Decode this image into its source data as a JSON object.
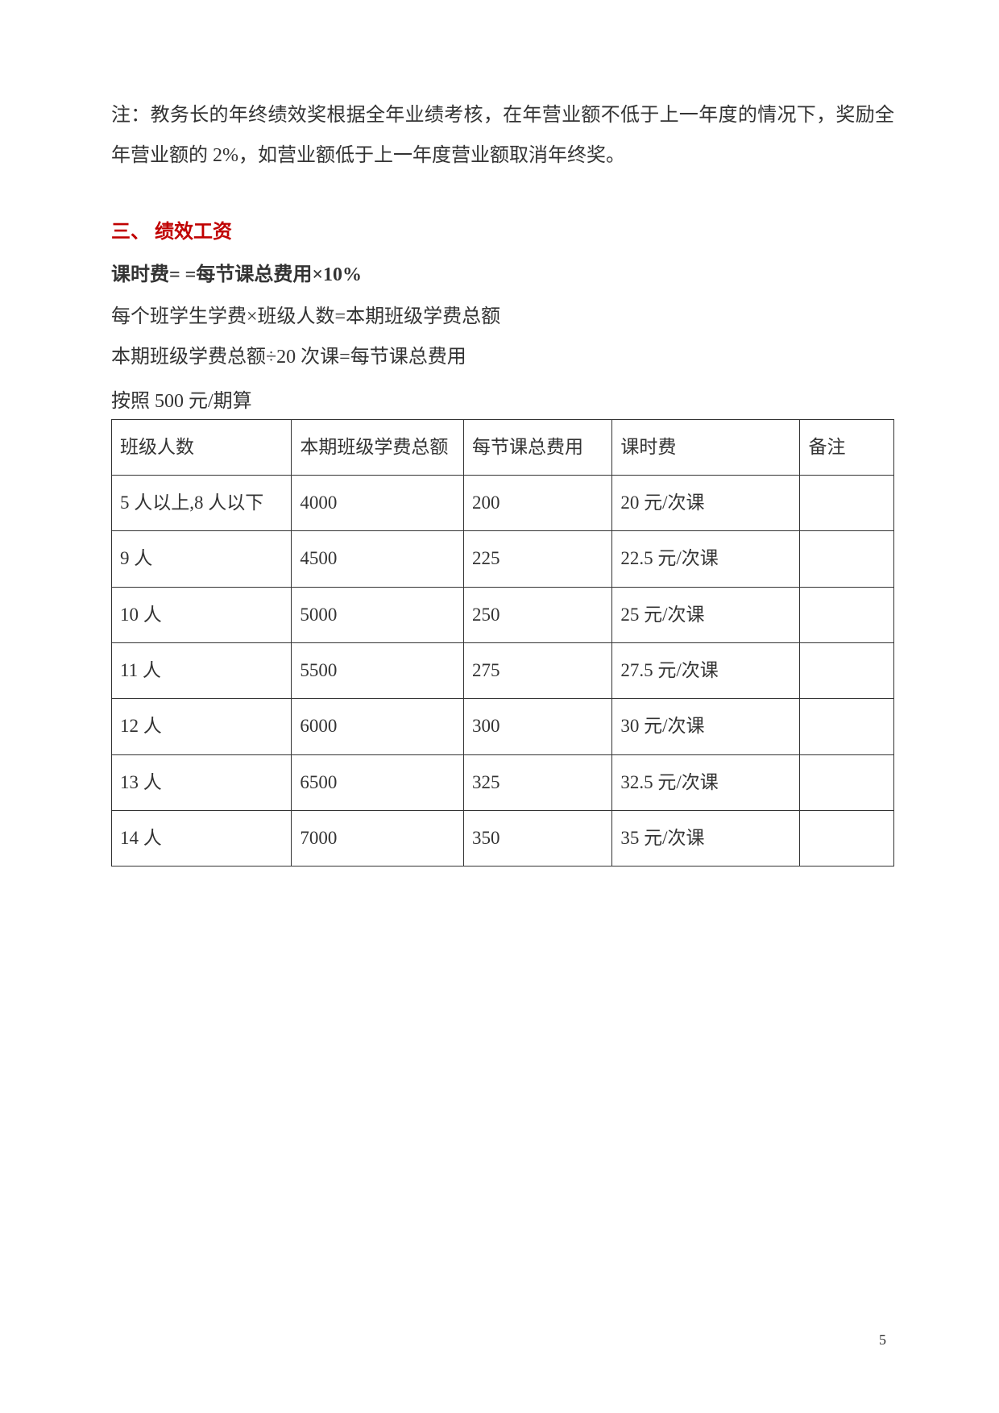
{
  "note": {
    "text": "注：教务长的年终绩效奖根据全年业绩考核，在年营业额不低于上一年度的情况下，奖励全年营业额的 2%，如营业额低于上一年度营业额取消年终奖。"
  },
  "section": {
    "heading": "三、 绩效工资",
    "formula_heading": "课时费= =每节课总费用×10%",
    "formula_lines": [
      "每个班学生学费×班级人数=本期班级学费总额",
      "本期班级学费总额÷20 次课=每节课总费用"
    ],
    "table_intro": "按照 500 元/期算"
  },
  "table": {
    "columns": [
      "班级人数",
      "本期班级学费总额",
      "每节课总费用",
      "课时费",
      "备注"
    ],
    "rows": [
      [
        "5 人以上,8 人以下",
        "4000",
        "200",
        "20 元/次课",
        ""
      ],
      [
        "9 人",
        "4500",
        "225",
        "22.5 元/次课",
        ""
      ],
      [
        "10 人",
        "5000",
        "250",
        "25 元/次课",
        ""
      ],
      [
        "11 人",
        "5500",
        "275",
        "27.5 元/次课",
        ""
      ],
      [
        "12 人",
        "6000",
        "300",
        "30 元/次课",
        ""
      ],
      [
        "13 人",
        "6500",
        "325",
        "32.5 元/次课",
        ""
      ],
      [
        "14 人",
        "7000",
        "350",
        "35 元/次课",
        ""
      ]
    ],
    "column_widths": [
      "23%",
      "22%",
      "19%",
      "24%",
      "12%"
    ]
  },
  "page_number": "5",
  "styling": {
    "background_color": "#ffffff",
    "text_color": "#333333",
    "heading_color": "#c00000",
    "border_color": "#333333",
    "body_font_size": 24,
    "page_number_font_size": 18,
    "line_height": 2.1
  }
}
